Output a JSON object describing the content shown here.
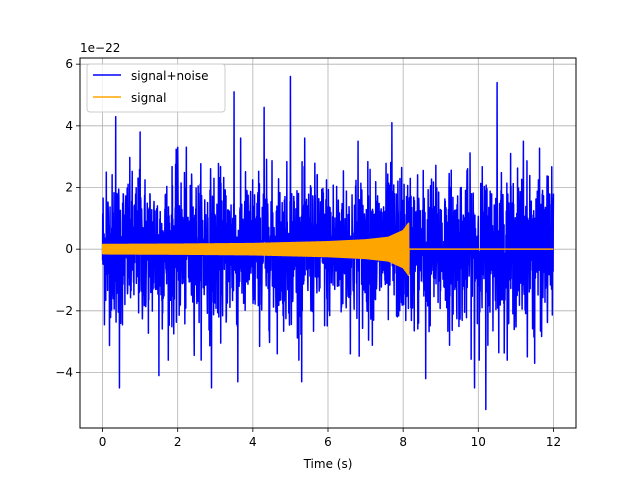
{
  "chart_data": {
    "type": "line",
    "title": "",
    "xlabel": "Time (s)",
    "ylabel": "",
    "y_offset_text": "1e−22",
    "xlim": [
      -0.6,
      12.6
    ],
    "ylim": [
      -5.8,
      6.2
    ],
    "xticks": [
      0,
      2,
      4,
      6,
      8,
      10,
      12
    ],
    "xtick_labels": [
      "0",
      "2",
      "4",
      "6",
      "8",
      "10",
      "12"
    ],
    "yticks": [
      -4,
      -2,
      0,
      2,
      4,
      6
    ],
    "ytick_labels": [
      "−4",
      "−2",
      "0",
      "2",
      "4",
      "6"
    ],
    "grid": true,
    "legend_position": "top-left",
    "series": [
      {
        "name": "signal+noise",
        "color": "#0000ff",
        "x_range": [
          0,
          12
        ],
        "typical_amplitude": 2.5,
        "envelope_points": [
          {
            "x": 0.1,
            "y": 2.5
          },
          {
            "x": 0.35,
            "y": 4.3
          },
          {
            "x": 0.45,
            "y": -4.5
          },
          {
            "x": 1.0,
            "y": 3.8
          },
          {
            "x": 1.5,
            "y": -4.1
          },
          {
            "x": 2.0,
            "y": 3.3
          },
          {
            "x": 2.9,
            "y": -4.5
          },
          {
            "x": 3.5,
            "y": 5.1
          },
          {
            "x": 3.6,
            "y": -4.3
          },
          {
            "x": 4.3,
            "y": 4.6
          },
          {
            "x": 5.0,
            "y": 5.6
          },
          {
            "x": 5.3,
            "y": -4.3
          },
          {
            "x": 6.8,
            "y": 3.5
          },
          {
            "x": 7.7,
            "y": 4.1
          },
          {
            "x": 8.6,
            "y": -4.2
          },
          {
            "x": 9.9,
            "y": -4.5
          },
          {
            "x": 10.2,
            "y": -5.2
          },
          {
            "x": 10.5,
            "y": 5.4
          },
          {
            "x": 11.2,
            "y": 3.5
          },
          {
            "x": 11.5,
            "y": -3.7
          },
          {
            "x": 12.0,
            "y": 1.8
          }
        ]
      },
      {
        "name": "signal",
        "color": "#ffa500",
        "x_range": [
          0,
          12
        ],
        "merger_time": 8.15,
        "envelope": [
          {
            "x": 0,
            "y": 0.15
          },
          {
            "x": 2,
            "y": 0.16
          },
          {
            "x": 4,
            "y": 0.18
          },
          {
            "x": 6,
            "y": 0.24
          },
          {
            "x": 7,
            "y": 0.3
          },
          {
            "x": 7.6,
            "y": 0.38
          },
          {
            "x": 8.0,
            "y": 0.6
          },
          {
            "x": 8.15,
            "y": 0.85
          },
          {
            "x": 8.2,
            "y": 0.0
          },
          {
            "x": 12,
            "y": 0.0
          }
        ]
      }
    ]
  }
}
